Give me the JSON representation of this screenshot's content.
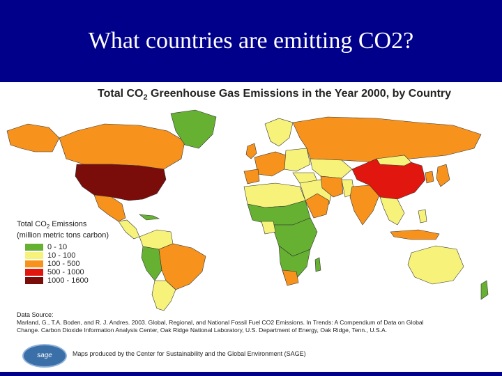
{
  "slide": {
    "title": "What countries are emitting CO2?"
  },
  "map": {
    "title_part1": "Total CO",
    "title_sub": "2",
    "title_part2": " Greenhouse Gas Emissions in the Year 2000, by Country"
  },
  "legend": {
    "title_part1": "Total CO",
    "title_sub": "2",
    "title_part2": " Emissions",
    "subtitle": "(million metric tons carbon)",
    "items": [
      {
        "label": "0 - 10",
        "color": "#66b132"
      },
      {
        "label": "10 - 100",
        "color": "#f6f27a"
      },
      {
        "label": "100 - 500",
        "color": "#f7931d"
      },
      {
        "label": "500 - 1000",
        "color": "#e0160f"
      },
      {
        "label": "1000 - 1600",
        "color": "#7a0c0a"
      }
    ]
  },
  "source": {
    "title": "Data Source:",
    "line1": "Marland, G., T.A. Boden, and R. J. Andres. 2003. Global, Regional, and National Fossil Fuel CO2 Emissions. In Trends: A Compendium of Data on Global",
    "line2": "Change. Carbon Dioxide Information Analysis Center, Oak Ridge National Laboratory, U.S. Department of Energy, Oak Ridge, Tenn., U.S.A."
  },
  "footer": {
    "logo_text": "sage",
    "credit": "Maps produced by the Center for Sustainability and the Global Environment (SAGE)"
  },
  "colors": {
    "header": "#00008b",
    "ocean": "#ffffff",
    "border": "#333333"
  }
}
